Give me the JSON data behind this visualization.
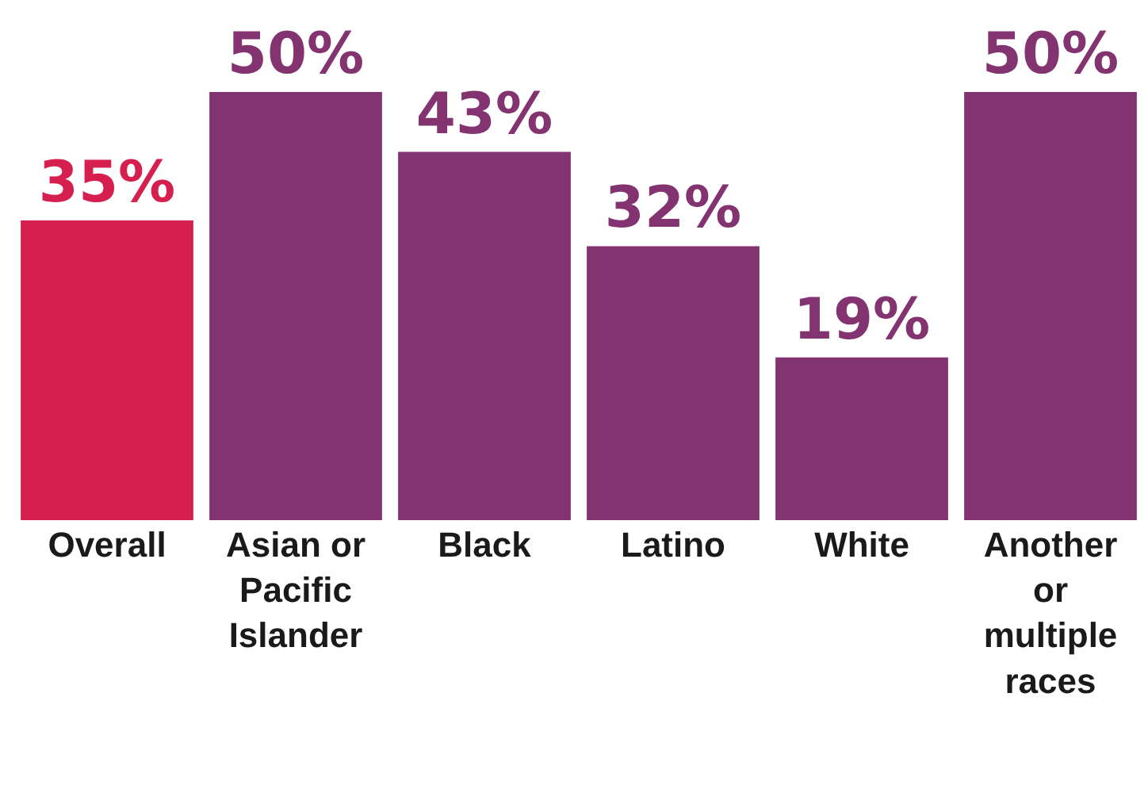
{
  "chart_data": {
    "type": "bar",
    "categories": [
      "Overall",
      "Asian or Pacific Islander",
      "Black",
      "Latino",
      "White",
      "Another or multiple races"
    ],
    "values": [
      35,
      50,
      43,
      32,
      19,
      50
    ],
    "colors": [
      "#d51f4e",
      "#833370",
      "#833370",
      "#833370",
      "#833370",
      "#833370"
    ],
    "value_labels": [
      "35%",
      "50%",
      "43%",
      "32%",
      "19%",
      "50%"
    ]
  }
}
